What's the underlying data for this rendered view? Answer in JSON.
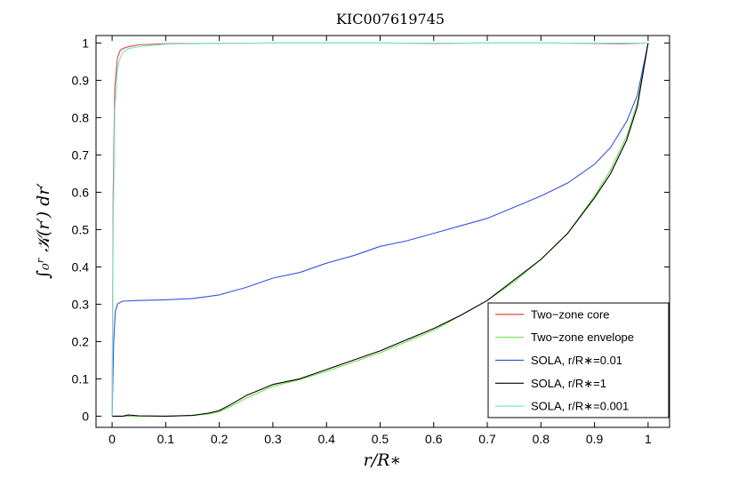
{
  "chart_data": {
    "type": "line",
    "title": "KIC007619745",
    "xlabel": "r/R∗",
    "ylabel": "∫₀ʳ 𝒦(r′) dr′",
    "xlim": [
      -0.03,
      1.04
    ],
    "ylim": [
      -0.03,
      1.02
    ],
    "x_ticks": [
      0,
      0.1,
      0.2,
      0.3,
      0.4,
      0.5,
      0.6,
      0.7,
      0.8,
      0.9,
      1
    ],
    "y_ticks": [
      0,
      0.1,
      0.2,
      0.3,
      0.4,
      0.5,
      0.6,
      0.7,
      0.8,
      0.9,
      1
    ],
    "grid": false,
    "legend_position": "bottom-right",
    "series": [
      {
        "name": "Two−zone core",
        "color": "#e0463a",
        "x": [
          0,
          0.002,
          0.005,
          0.01,
          0.015,
          0.02,
          0.03,
          0.05,
          0.1,
          0.2,
          0.3,
          0.4,
          0.5,
          0.6,
          0.7,
          0.8,
          0.9,
          0.95,
          1
        ],
        "y": [
          0,
          0.6,
          0.88,
          0.96,
          0.98,
          0.985,
          0.99,
          0.995,
          0.998,
          0.999,
          1,
          1,
          1,
          0.999,
          1,
          1,
          0.999,
          0.998,
          1
        ]
      },
      {
        "name": "Two−zone envelope",
        "color": "#6fe04a",
        "x": [
          0,
          0.05,
          0.1,
          0.15,
          0.18,
          0.2,
          0.22,
          0.25,
          0.3,
          0.35,
          0.4,
          0.45,
          0.5,
          0.55,
          0.6,
          0.65,
          0.7,
          0.75,
          0.8,
          0.85,
          0.9,
          0.93,
          0.96,
          0.98,
          1
        ],
        "y": [
          0,
          0,
          0,
          0.002,
          0.006,
          0.012,
          0.025,
          0.048,
          0.08,
          0.098,
          0.12,
          0.145,
          0.17,
          0.2,
          0.23,
          0.27,
          0.31,
          0.36,
          0.42,
          0.49,
          0.59,
          0.66,
          0.75,
          0.84,
          1
        ]
      },
      {
        "name": "SOLA, r/R∗=0.01",
        "color": "#3a50e0",
        "x": [
          0,
          0.003,
          0.006,
          0.01,
          0.015,
          0.02,
          0.05,
          0.1,
          0.15,
          0.2,
          0.25,
          0.3,
          0.35,
          0.4,
          0.45,
          0.5,
          0.55,
          0.6,
          0.65,
          0.7,
          0.75,
          0.8,
          0.85,
          0.9,
          0.93,
          0.96,
          0.98,
          1
        ],
        "y": [
          0,
          0.2,
          0.28,
          0.3,
          0.305,
          0.308,
          0.31,
          0.312,
          0.315,
          0.325,
          0.345,
          0.37,
          0.385,
          0.41,
          0.43,
          0.455,
          0.47,
          0.49,
          0.51,
          0.53,
          0.56,
          0.59,
          0.625,
          0.675,
          0.72,
          0.79,
          0.86,
          1
        ]
      },
      {
        "name": "SOLA, r/R∗=1",
        "color": "#000000",
        "x": [
          0,
          0.02,
          0.03,
          0.05,
          0.1,
          0.15,
          0.18,
          0.2,
          0.22,
          0.25,
          0.3,
          0.35,
          0.4,
          0.45,
          0.5,
          0.55,
          0.6,
          0.65,
          0.7,
          0.75,
          0.8,
          0.85,
          0.9,
          0.93,
          0.96,
          0.98,
          1
        ],
        "y": [
          0,
          0,
          0.003,
          0.001,
          0,
          0.002,
          0.008,
          0.015,
          0.03,
          0.055,
          0.085,
          0.1,
          0.125,
          0.15,
          0.175,
          0.205,
          0.235,
          0.27,
          0.31,
          0.365,
          0.42,
          0.49,
          0.585,
          0.65,
          0.74,
          0.83,
          1
        ]
      },
      {
        "name": "SOLA, r/R∗=0.001",
        "color": "#6fe8d8",
        "x": [
          0,
          0.002,
          0.005,
          0.01,
          0.015,
          0.02,
          0.03,
          0.05,
          0.1,
          0.2,
          0.3,
          0.4,
          0.5,
          0.6,
          0.7,
          0.8,
          0.9,
          0.95,
          1
        ],
        "y": [
          0,
          0.5,
          0.82,
          0.93,
          0.96,
          0.975,
          0.985,
          0.99,
          0.997,
          0.999,
          1,
          1,
          1,
          1,
          1,
          1,
          1,
          1,
          1
        ]
      }
    ]
  }
}
